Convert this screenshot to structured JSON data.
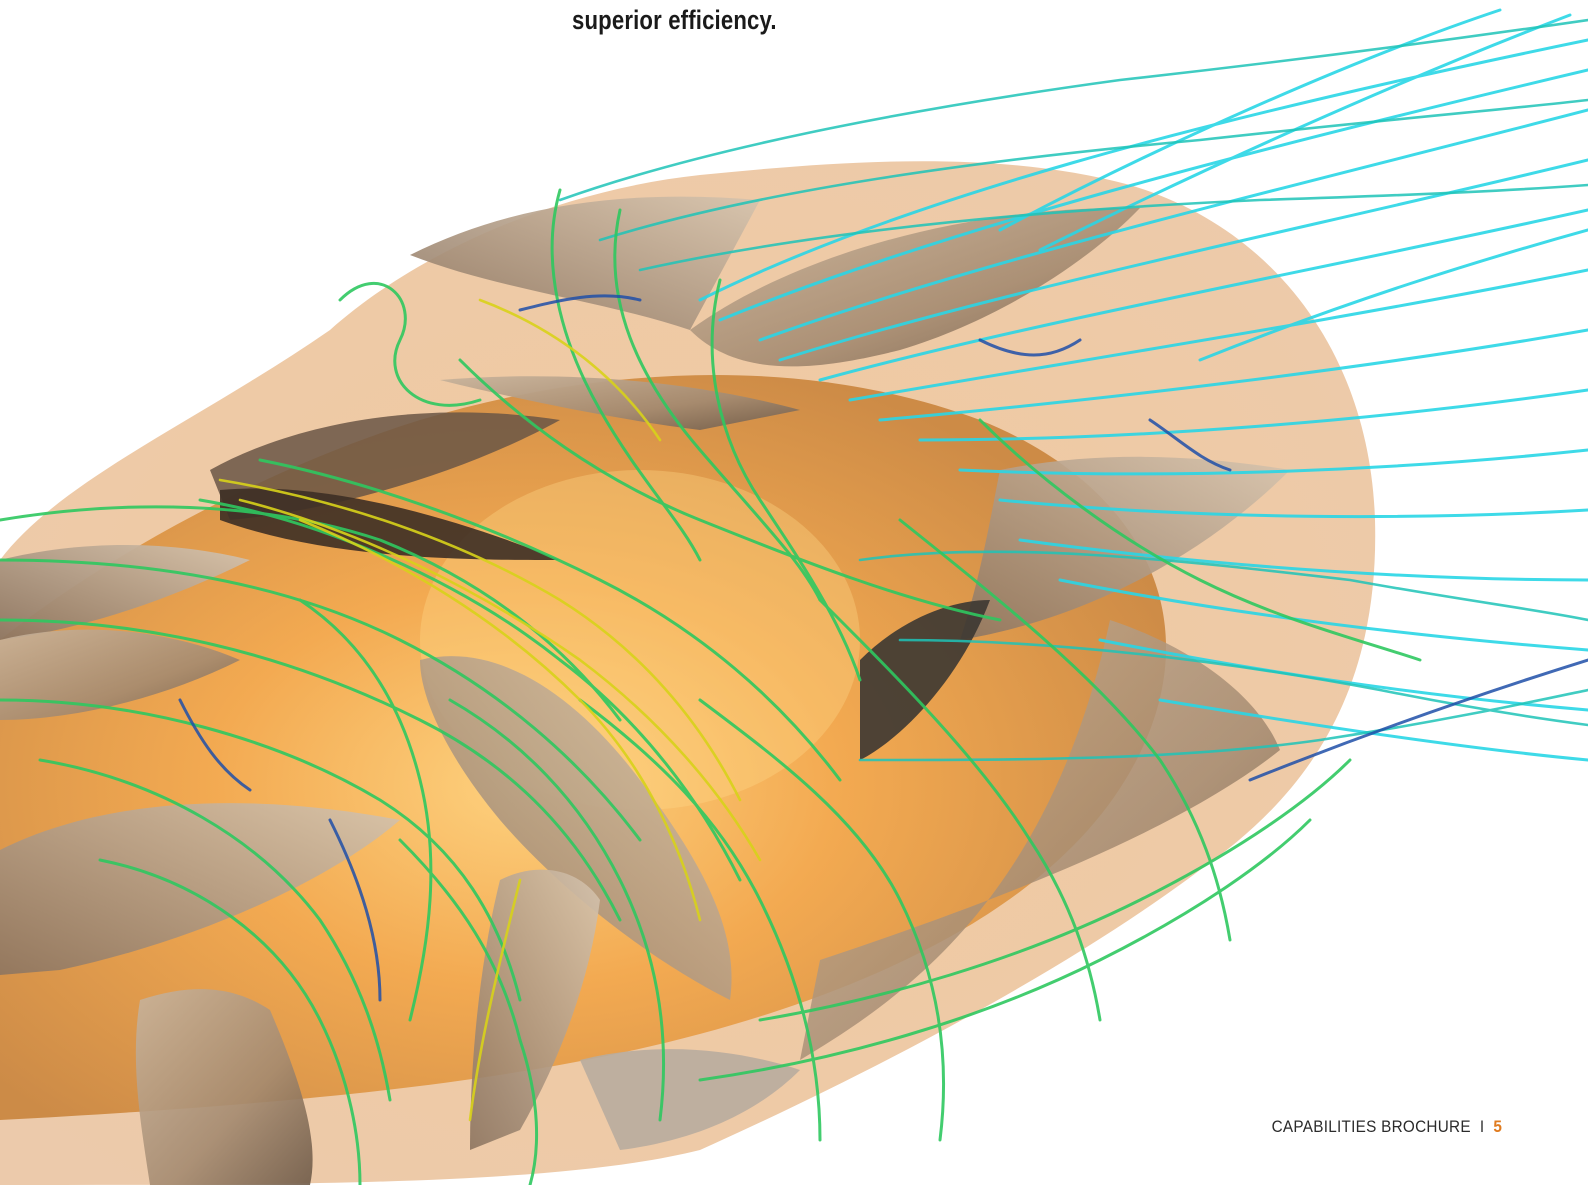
{
  "page": {
    "headline": "superior efficiency.",
    "footer": {
      "brochure_label": "CAPABILITIES BROCHURE",
      "separator": "I",
      "page_number": "5"
    }
  },
  "figure": {
    "type": "cfd-streamline-render",
    "colors": {
      "housing": "#e9b98a",
      "housing_core": "#f4a94a",
      "blade": "#b69f86",
      "blade_shadow": "#6b5a4a",
      "streamline_yellow": "#d8d21a",
      "streamline_green": "#2fc860",
      "streamline_teal": "#1fc4b8",
      "streamline_cyan": "#2ad6e6",
      "streamline_blue": "#1f4fa8"
    }
  }
}
